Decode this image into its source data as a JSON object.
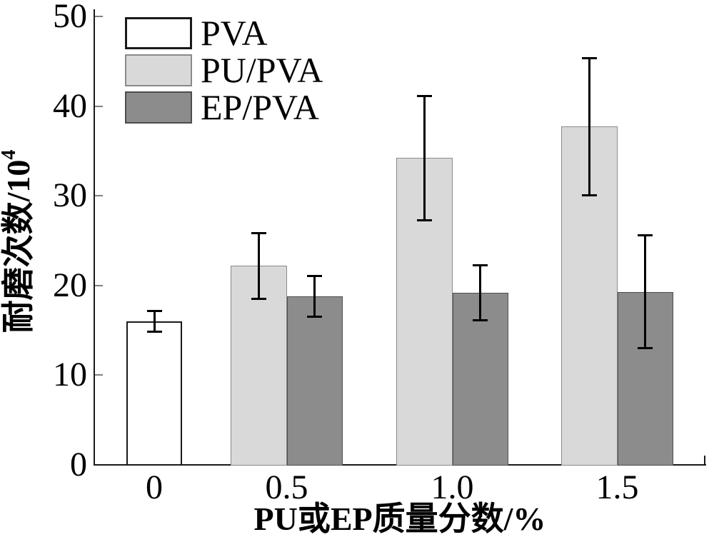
{
  "figure": {
    "background": "#ffffff"
  },
  "chart_data": {
    "type": "bar",
    "title": "",
    "xlabel": "PU或EP质量分数/%",
    "ylabel": "耐磨次数/10⁴",
    "ylabel_base": "耐磨次数/10",
    "ylabel_exponent": "4",
    "categories": [
      "0",
      "0.5",
      "1.0",
      "1.5"
    ],
    "ylim": [
      0,
      50
    ],
    "yticks": [
      0,
      10,
      20,
      30,
      40,
      50
    ],
    "grid": false,
    "legend_position": "top-left",
    "error_bars": true,
    "series": [
      {
        "name": "PVA",
        "fill": "#ffffff",
        "border": "#1a1a1a",
        "values": [
          16,
          null,
          null,
          null
        ],
        "errors": [
          1.2,
          null,
          null,
          null
        ]
      },
      {
        "name": "PU/PVA",
        "fill": "#d9d9d9",
        "border": "#8a8a8a",
        "values": [
          null,
          22.2,
          34.2,
          37.7
        ],
        "errors": [
          null,
          3.7,
          7.0,
          7.7
        ]
      },
      {
        "name": "EP/PVA",
        "fill": "#8c8c8c",
        "border": "#4d4d4d",
        "values": [
          null,
          18.8,
          19.2,
          19.3
        ],
        "errors": [
          null,
          2.3,
          3.1,
          6.3
        ]
      }
    ]
  }
}
